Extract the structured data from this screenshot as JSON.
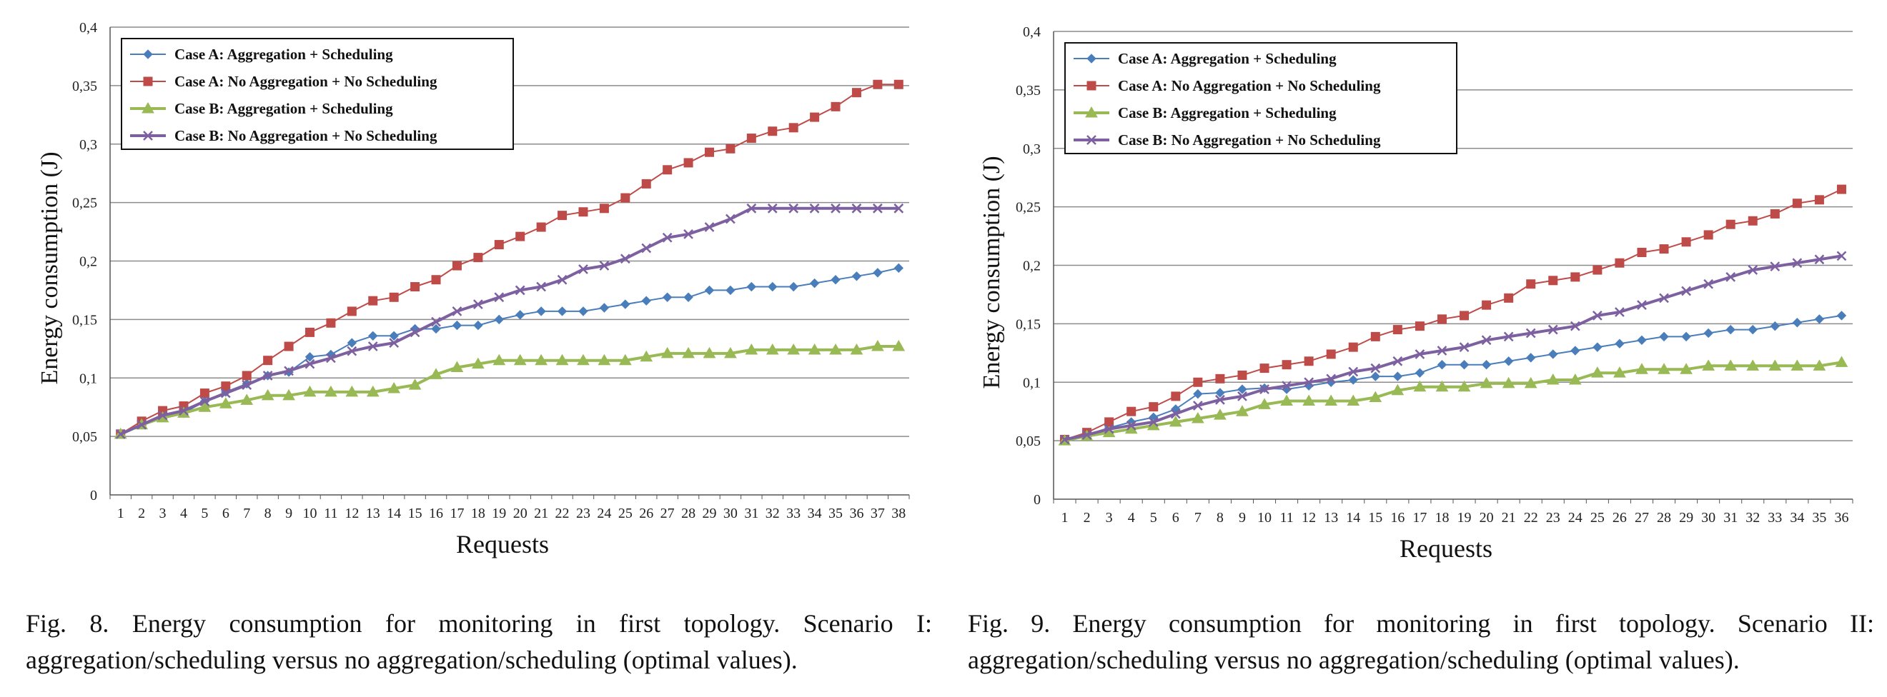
{
  "chart_data": [
    {
      "id": "fig8",
      "type": "line",
      "xlabel": "Requests",
      "ylabel": "Energy consumption (J)",
      "x": [
        1,
        2,
        3,
        4,
        5,
        6,
        7,
        8,
        9,
        10,
        11,
        12,
        13,
        14,
        15,
        16,
        17,
        18,
        19,
        20,
        21,
        22,
        23,
        24,
        25,
        26,
        27,
        28,
        29,
        30,
        31,
        32,
        33,
        34,
        35,
        36,
        37,
        38
      ],
      "ylim": [
        0,
        0.4
      ],
      "yticks": [
        "0",
        "0,05",
        "0,1",
        "0,15",
        "0,2",
        "0,25",
        "0,3",
        "0,35",
        "0,4"
      ],
      "grid": true,
      "legend_position": "top-left",
      "series": [
        {
          "name": "Case A: Aggregation + Scheduling",
          "color": "#4a7ebb",
          "marker": "diamond",
          "values": [
            0.052,
            0.06,
            0.068,
            0.07,
            0.08,
            0.088,
            0.095,
            0.102,
            0.105,
            0.118,
            0.12,
            0.13,
            0.136,
            0.136,
            0.142,
            0.142,
            0.145,
            0.145,
            0.15,
            0.154,
            0.157,
            0.157,
            0.157,
            0.16,
            0.163,
            0.166,
            0.169,
            0.169,
            0.175,
            0.175,
            0.178,
            0.178,
            0.178,
            0.181,
            0.184,
            0.187,
            0.19,
            0.194
          ]
        },
        {
          "name": "Case A: No Aggregation + No Scheduling",
          "color": "#be4b48",
          "marker": "square",
          "values": [
            0.052,
            0.063,
            0.072,
            0.076,
            0.087,
            0.093,
            0.102,
            0.115,
            0.127,
            0.139,
            0.147,
            0.157,
            0.166,
            0.169,
            0.178,
            0.184,
            0.196,
            0.203,
            0.214,
            0.221,
            0.229,
            0.239,
            0.242,
            0.245,
            0.254,
            0.266,
            0.278,
            0.284,
            0.293,
            0.296,
            0.305,
            0.311,
            0.314,
            0.323,
            0.332,
            0.344,
            0.351,
            0.351
          ]
        },
        {
          "name": "Case B: Aggregation + Scheduling",
          "color": "#98b954",
          "marker": "triangle",
          "values": [
            0.052,
            0.06,
            0.066,
            0.07,
            0.075,
            0.078,
            0.081,
            0.085,
            0.085,
            0.088,
            0.088,
            0.088,
            0.088,
            0.091,
            0.094,
            0.103,
            0.109,
            0.112,
            0.115,
            0.115,
            0.115,
            0.115,
            0.115,
            0.115,
            0.115,
            0.118,
            0.121,
            0.121,
            0.121,
            0.121,
            0.124,
            0.124,
            0.124,
            0.124,
            0.124,
            0.124,
            0.127,
            0.127
          ]
        },
        {
          "name": "Case B: No Aggregation + No Scheduling",
          "color": "#7d60a0",
          "marker": "x",
          "values": [
            0.052,
            0.06,
            0.068,
            0.072,
            0.08,
            0.087,
            0.094,
            0.102,
            0.106,
            0.112,
            0.117,
            0.123,
            0.127,
            0.13,
            0.139,
            0.148,
            0.157,
            0.163,
            0.169,
            0.175,
            0.178,
            0.184,
            0.193,
            0.196,
            0.202,
            0.211,
            0.22,
            0.223,
            0.229,
            0.236,
            0.245,
            0.245,
            0.245,
            0.245,
            0.245,
            0.245,
            0.245,
            0.245
          ]
        }
      ]
    },
    {
      "id": "fig9",
      "type": "line",
      "xlabel": "Requests",
      "ylabel": "Energy consumption (J)",
      "x": [
        1,
        2,
        3,
        4,
        5,
        6,
        7,
        8,
        9,
        10,
        11,
        12,
        13,
        14,
        15,
        16,
        17,
        18,
        19,
        20,
        21,
        22,
        23,
        24,
        25,
        26,
        27,
        28,
        29,
        30,
        31,
        32,
        33,
        34,
        35,
        36
      ],
      "ylim": [
        0,
        0.4
      ],
      "yticks": [
        "0",
        "0,05",
        "0,1",
        "0,15",
        "0,2",
        "0,25",
        "0,3",
        "0,35",
        "0,4"
      ],
      "grid": true,
      "legend_position": "top-left",
      "series": [
        {
          "name": "Case A: Aggregation + Scheduling",
          "color": "#4a7ebb",
          "marker": "diamond",
          "values": [
            0.051,
            0.055,
            0.061,
            0.066,
            0.07,
            0.077,
            0.09,
            0.091,
            0.094,
            0.095,
            0.094,
            0.097,
            0.1,
            0.102,
            0.105,
            0.105,
            0.108,
            0.115,
            0.115,
            0.115,
            0.118,
            0.121,
            0.124,
            0.127,
            0.13,
            0.133,
            0.136,
            0.139,
            0.139,
            0.142,
            0.145,
            0.145,
            0.148,
            0.151,
            0.154,
            0.157
          ]
        },
        {
          "name": "Case A: No Aggregation + No Scheduling",
          "color": "#be4b48",
          "marker": "square",
          "values": [
            0.051,
            0.057,
            0.066,
            0.075,
            0.079,
            0.088,
            0.1,
            0.103,
            0.106,
            0.112,
            0.115,
            0.118,
            0.124,
            0.13,
            0.139,
            0.145,
            0.148,
            0.154,
            0.157,
            0.166,
            0.172,
            0.184,
            0.187,
            0.19,
            0.196,
            0.202,
            0.211,
            0.214,
            0.22,
            0.226,
            0.235,
            0.238,
            0.244,
            0.253,
            0.256,
            0.265
          ]
        },
        {
          "name": "Case B: Aggregation + Scheduling",
          "color": "#98b954",
          "marker": "triangle",
          "values": [
            0.05,
            0.054,
            0.057,
            0.06,
            0.063,
            0.066,
            0.069,
            0.072,
            0.075,
            0.081,
            0.084,
            0.084,
            0.084,
            0.084,
            0.087,
            0.093,
            0.096,
            0.096,
            0.096,
            0.099,
            0.099,
            0.099,
            0.102,
            0.102,
            0.108,
            0.108,
            0.111,
            0.111,
            0.111,
            0.114,
            0.114,
            0.114,
            0.114,
            0.114,
            0.114,
            0.117
          ]
        },
        {
          "name": "Case B: No Aggregation + No Scheduling",
          "color": "#7d60a0",
          "marker": "x",
          "values": [
            0.051,
            0.055,
            0.06,
            0.063,
            0.066,
            0.073,
            0.08,
            0.085,
            0.088,
            0.094,
            0.097,
            0.1,
            0.103,
            0.109,
            0.112,
            0.118,
            0.124,
            0.127,
            0.13,
            0.136,
            0.139,
            0.142,
            0.145,
            0.148,
            0.157,
            0.16,
            0.166,
            0.172,
            0.178,
            0.184,
            0.19,
            0.196,
            0.199,
            0.202,
            0.205,
            0.208
          ]
        }
      ]
    }
  ],
  "captions": {
    "fig8": "Fig. 8. Energy consumption for monitoring in first topology. Scenario I: aggregation/scheduling versus no aggregation/scheduling (optimal values).",
    "fig9": "Fig. 9. Energy consumption for monitoring in first topology. Scenario II: aggregation/scheduling versus no aggregation/scheduling (optimal values)."
  }
}
